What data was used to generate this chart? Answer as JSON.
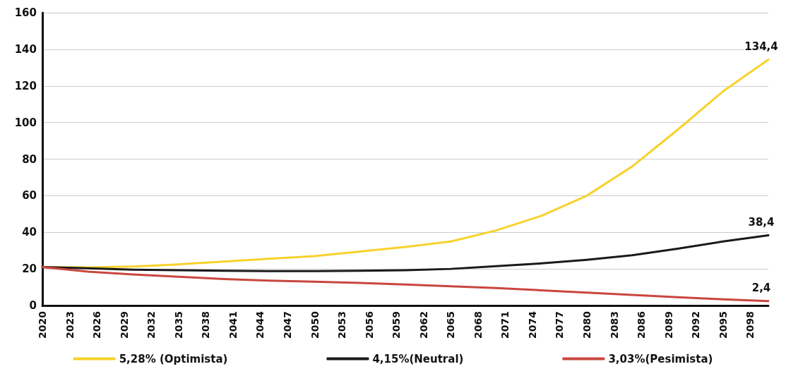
{
  "chart_data": {
    "type": "line",
    "xlim": [
      2020,
      2100
    ],
    "xticks": [
      2020,
      2023,
      2026,
      2029,
      2032,
      2035,
      2038,
      2041,
      2044,
      2047,
      2050,
      2053,
      2056,
      2059,
      2062,
      2065,
      2068,
      2071,
      2074,
      2077,
      2080,
      2083,
      2086,
      2089,
      2092,
      2095,
      2098
    ],
    "ylim": [
      0,
      160
    ],
    "yticks": [
      0,
      20,
      40,
      60,
      80,
      100,
      120,
      140,
      160
    ],
    "grid": "y",
    "legend": "bottom",
    "marker": "none",
    "line_style": "solid",
    "series": [
      {
        "name": "5,28% (Optimista)",
        "color": "#f7d22c",
        "x": [
          2020,
          2025,
          2030,
          2035,
          2040,
          2045,
          2050,
          2055,
          2060,
          2065,
          2070,
          2075,
          2080,
          2085,
          2090,
          2095,
          2100
        ],
        "values": [
          21,
          20.8,
          21.3,
          22.5,
          24,
          25.5,
          27,
          29.5,
          32,
          35,
          41,
          49,
          60,
          76,
          96,
          117,
          134.4
        ],
        "value_labels": [
          null,
          null,
          null,
          null,
          null,
          null,
          null,
          null,
          null,
          null,
          null,
          null,
          null,
          null,
          null,
          null,
          "134,4"
        ]
      },
      {
        "name": "4,15%(Neutral)",
        "color": "#1a1a1a",
        "x": [
          2020,
          2025,
          2030,
          2035,
          2040,
          2045,
          2050,
          2055,
          2060,
          2065,
          2070,
          2075,
          2080,
          2085,
          2090,
          2095,
          2100
        ],
        "values": [
          21,
          20.3,
          19.6,
          19.3,
          19,
          18.8,
          18.8,
          19,
          19.3,
          20,
          21.5,
          23,
          25,
          27.5,
          31,
          35,
          38.4
        ],
        "value_labels": [
          null,
          null,
          null,
          null,
          null,
          null,
          null,
          null,
          null,
          null,
          null,
          null,
          null,
          null,
          null,
          null,
          "38,4"
        ]
      },
      {
        "name": "3,03%(Pesimista)",
        "color": "#c9463d",
        "x": [
          2020,
          2025,
          2030,
          2035,
          2040,
          2045,
          2050,
          2055,
          2060,
          2065,
          2070,
          2075,
          2080,
          2085,
          2090,
          2095,
          2100
        ],
        "values": [
          21,
          18.5,
          17,
          15.7,
          14.5,
          13.6,
          13,
          12.3,
          11.5,
          10.5,
          9.5,
          8.3,
          7,
          5.8,
          4.5,
          3.4,
          2.4
        ],
        "value_labels": [
          null,
          null,
          null,
          null,
          null,
          null,
          null,
          null,
          null,
          null,
          null,
          null,
          null,
          null,
          null,
          null,
          "2,4"
        ]
      }
    ]
  }
}
